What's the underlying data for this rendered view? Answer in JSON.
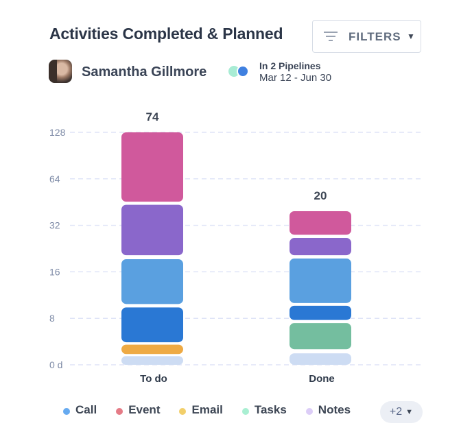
{
  "header": {
    "title": "Activities Completed & Planned",
    "filters_label": "FILTERS",
    "filters_caret": "▼",
    "filter_icon": "filter-lines-icon"
  },
  "owner": {
    "name": "Samantha Gillmore",
    "avatar": "user-photo"
  },
  "pipelines": {
    "icon": "pipelines-toggle-icon",
    "title": "In 2 Pipelines",
    "range": "Mar 12 - Jun 30"
  },
  "colors": {
    "Call": "#5a9fe0",
    "Event": "#e07a86",
    "Email": "#f0cf6a",
    "Tasks": "#a8ecd4",
    "Notes": "#d9c9f5",
    "grid": "#dfe4f7"
  },
  "chart_data": {
    "type": "bar",
    "stacked": true,
    "scale": "log2",
    "categories": [
      "To do",
      "Done"
    ],
    "totals": [
      "74",
      "20"
    ],
    "y_ticks": [
      {
        "value": 4,
        "label": "0 d"
      },
      {
        "value": 8,
        "label": "8"
      },
      {
        "value": 16,
        "label": "16"
      },
      {
        "value": 32,
        "label": "32"
      },
      {
        "value": 64,
        "label": "64"
      },
      {
        "value": 128,
        "label": "128"
      }
    ],
    "ylim": [
      4,
      128
    ],
    "grid": true,
    "bars": [
      {
        "category": "To do",
        "segments": [
          {
            "from": 4.0,
            "to": 4.55,
            "color": "#cddcf3"
          },
          {
            "from": 4.7,
            "to": 5.4,
            "color": "#eeaa44"
          },
          {
            "from": 5.6,
            "to": 9.4,
            "color": "#2a78d4"
          },
          {
            "from": 9.9,
            "to": 19.3,
            "color": "#5aa0e0"
          },
          {
            "from": 20.5,
            "to": 43.5,
            "color": "#8a67cb"
          },
          {
            "from": 45.5,
            "to": 128,
            "color": "#d0599c"
          }
        ]
      },
      {
        "category": "Done",
        "segments": [
          {
            "from": 4.0,
            "to": 4.75,
            "color": "#cddcf3"
          },
          {
            "from": 5.05,
            "to": 7.45,
            "color": "#74be9f"
          },
          {
            "from": 7.8,
            "to": 9.65,
            "color": "#2a78d4"
          },
          {
            "from": 10.05,
            "to": 19.5,
            "color": "#5aa0e0"
          },
          {
            "from": 20.5,
            "to": 26.5,
            "color": "#8a67cb"
          },
          {
            "from": 27.8,
            "to": 39.5,
            "color": "#d0599c"
          }
        ]
      }
    ],
    "legend": [
      {
        "label": "Call",
        "color": "#66aaf0"
      },
      {
        "label": "Event",
        "color": "#e57b86"
      },
      {
        "label": "Email",
        "color": "#f2cf6a"
      },
      {
        "label": "Tasks",
        "color": "#a9efd2"
      },
      {
        "label": "Notes",
        "color": "#dccdf7"
      }
    ],
    "legend_more": "+2",
    "legend_more_caret": "▼",
    "legend_position": "bottom"
  }
}
